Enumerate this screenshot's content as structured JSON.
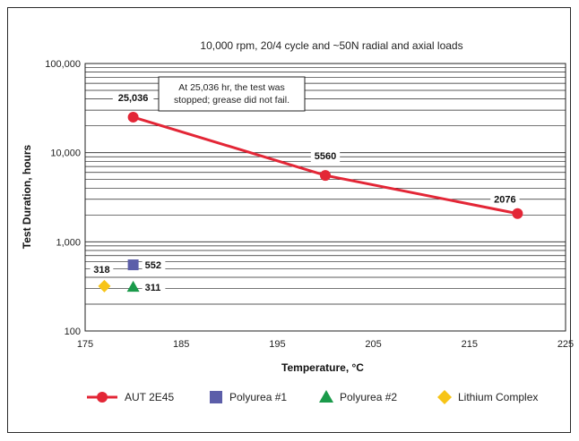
{
  "chart_data": {
    "type": "scatter",
    "title": "10,000 rpm, 20/4 cycle and ~50N radial and axial loads",
    "xlabel": "Temperature, °C",
    "ylabel": "Test Duration, hours",
    "xlim": [
      175,
      225
    ],
    "ylim": [
      100,
      100000
    ],
    "yscale": "log",
    "x_ticks": [
      "175",
      "185",
      "195",
      "205",
      "215",
      "225"
    ],
    "x_tick_values": [
      175,
      185,
      195,
      205,
      215,
      225
    ],
    "y_ticks": [
      "100",
      "1,000",
      "10,000",
      "100,000"
    ],
    "y_tick_values": [
      100,
      1000,
      10000,
      100000
    ],
    "grid": "horizontal minor log grid",
    "legend_position": "bottom",
    "series": [
      {
        "name": "AUT 2E45",
        "marker": "circle",
        "line": true,
        "color": "#e32636",
        "x": [
          180,
          200,
          220
        ],
        "y": [
          25036,
          5560,
          2076
        ],
        "labels": [
          "25,036",
          "5560",
          "2076"
        ]
      },
      {
        "name": "Polyurea #1",
        "marker": "square",
        "line": false,
        "color": "#5c5ea9",
        "x": [
          180
        ],
        "y": [
          552
        ],
        "labels": [
          "552"
        ]
      },
      {
        "name": "Polyurea #2",
        "marker": "triangle",
        "line": false,
        "color": "#1a9a4a",
        "x": [
          180
        ],
        "y": [
          311
        ],
        "labels": [
          "311"
        ]
      },
      {
        "name": "Lithium Complex",
        "marker": "diamond",
        "line": false,
        "color": "#f7c417",
        "x": [
          177
        ],
        "y": [
          318
        ],
        "labels": [
          "318"
        ]
      }
    ],
    "annotation": {
      "lines": [
        "At 25,036 hr, the test was",
        "stopped; grease did not fail."
      ]
    }
  }
}
